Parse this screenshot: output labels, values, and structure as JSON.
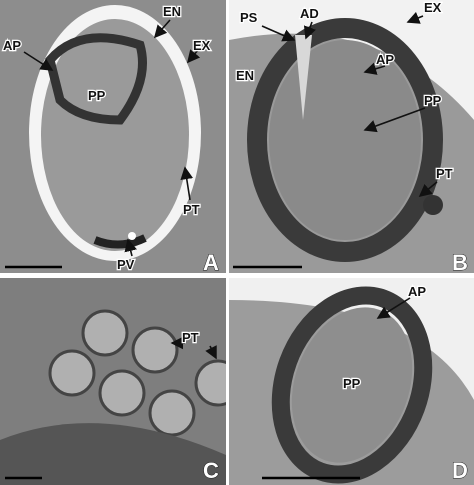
{
  "panels": [
    {
      "letter": "A",
      "labels": [
        "EN",
        "EX",
        "AP",
        "PP",
        "PT",
        "PV"
      ]
    },
    {
      "letter": "B",
      "labels": [
        "PS",
        "AD",
        "EX",
        "AP",
        "EN",
        "PP",
        "PT"
      ]
    },
    {
      "letter": "C",
      "labels": [
        "PT"
      ]
    },
    {
      "letter": "D",
      "labels": [
        "AP",
        "PP"
      ]
    }
  ]
}
